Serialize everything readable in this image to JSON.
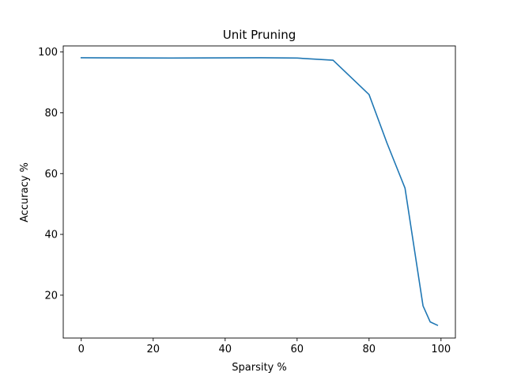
{
  "chart_data": {
    "type": "line",
    "title": "Unit Pruning",
    "xlabel": "Sparsity %",
    "ylabel": "Accuracy %",
    "xlim": [
      -5,
      104
    ],
    "ylim": [
      5.9,
      102
    ],
    "xticks": [
      0,
      20,
      40,
      60,
      80,
      100
    ],
    "yticks": [
      20,
      40,
      60,
      80,
      100
    ],
    "grid": false,
    "series": [
      {
        "color": "#1f77b4",
        "x": [
          0,
          25,
          50,
          60,
          70,
          80,
          85,
          90,
          95,
          97,
          99
        ],
        "y": [
          98.1,
          98.0,
          98.1,
          98.0,
          97.3,
          86.0,
          70.0,
          55.2,
          16.5,
          11.2,
          10.1
        ]
      }
    ]
  }
}
